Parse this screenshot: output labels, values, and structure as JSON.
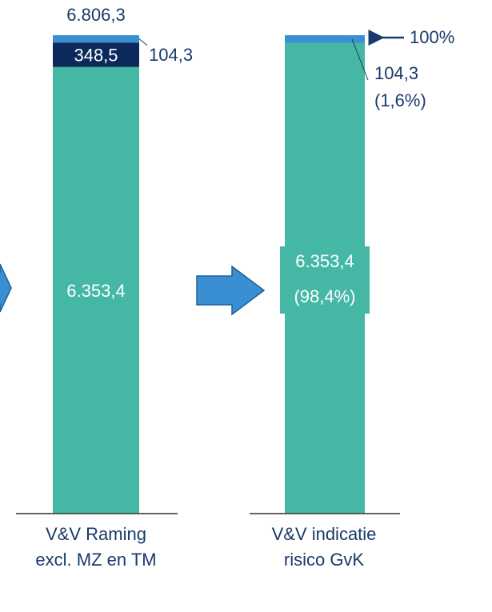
{
  "chart_data": [
    {
      "type": "bar",
      "stacked": true,
      "categories": [
        "V&V Raming excl. MZ en TM"
      ],
      "ylim": [
        0,
        6806.3
      ],
      "total": 6806.3,
      "total_label": "6.806,3",
      "series": [
        {
          "color": "#45b8a5",
          "values": [
            6353.4
          ],
          "value_labels": [
            "6.353,4"
          ]
        },
        {
          "color": "#0b2a5b",
          "values": [
            348.5
          ],
          "value_labels": [
            "348,5"
          ]
        },
        {
          "color": "#3a8fd2",
          "values": [
            104.3
          ],
          "value_labels": [
            "104,3"
          ]
        }
      ]
    },
    {
      "type": "bar",
      "stacked": true,
      "categories": [
        "V&V indicatie risico GvK"
      ],
      "ylim": [
        0,
        100
      ],
      "total": 100,
      "total_label": "100%",
      "series": [
        {
          "color": "#45b8a5",
          "values": [
            98.4
          ],
          "value_labels": [
            "(98,4%)"
          ],
          "amounts": [
            6353.4
          ],
          "amount_labels": [
            "6.353,4"
          ]
        },
        {
          "color": "#3a8fd2",
          "values": [
            1.6
          ],
          "value_labels": [
            "(1,6%)"
          ],
          "amounts": [
            104.3
          ],
          "amount_labels": [
            "104,3"
          ]
        }
      ]
    }
  ]
}
